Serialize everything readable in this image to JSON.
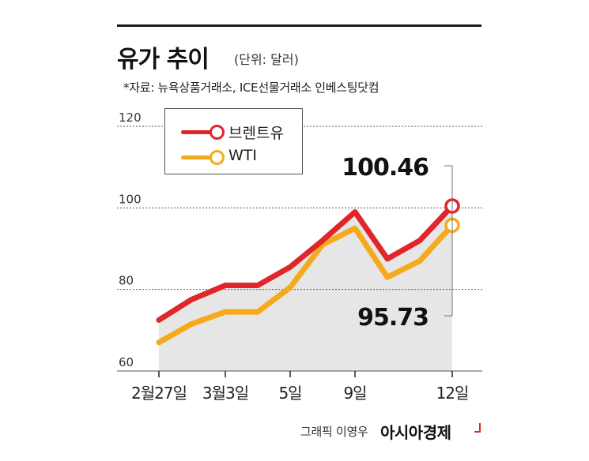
{
  "header": {
    "title": "유가 추이",
    "unit": "(단위: 달러)",
    "source": "*자료: 뉴욕상품거래소, ICE선물거래소 인베스팅닷컴"
  },
  "footer": {
    "credit": "그래픽 이영우",
    "brand": "아시아경제"
  },
  "colors": {
    "brent": "#e0262a",
    "wti": "#f5aa1c",
    "area": "#e6e6e6",
    "grid": "#555555"
  },
  "chart_data": {
    "type": "line",
    "x_ticks": [
      "2월27일",
      "3월3일",
      "5일",
      "9일",
      "12일"
    ],
    "y_ticks": [
      60,
      80,
      100,
      120
    ],
    "ylim": [
      60,
      120
    ],
    "grid": true,
    "legend": "top-left",
    "series": [
      {
        "name": "브렌트유",
        "values": [
          72.5,
          77.5,
          81,
          81,
          85.5,
          92,
          99,
          87.5,
          92,
          100.46
        ],
        "end_label": "100.46"
      },
      {
        "name": "WTI",
        "values": [
          67,
          71.5,
          74.5,
          74.5,
          80.5,
          91,
          95,
          83,
          87,
          95.73
        ],
        "end_label": "95.73"
      }
    ]
  }
}
